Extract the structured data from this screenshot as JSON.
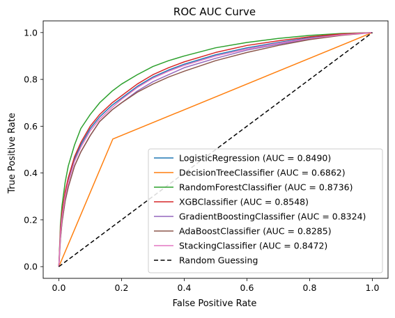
{
  "chart_data": {
    "type": "line",
    "title": "ROC AUC Curve",
    "xlabel": "False Positive Rate",
    "ylabel": "True Positive Rate",
    "xlim": [
      -0.05,
      1.05
    ],
    "ylim": [
      -0.05,
      1.05
    ],
    "xticks": [
      "0.0",
      "0.2",
      "0.4",
      "0.6",
      "0.8",
      "1.0"
    ],
    "yticks": [
      "0.0",
      "0.2",
      "0.4",
      "0.6",
      "0.8",
      "1.0"
    ],
    "grid": false,
    "legend_position": "lower right",
    "series": [
      {
        "name": "LogisticRegression (AUC = 0.8490)",
        "color": "#1f77b4",
        "style": "solid",
        "x": [
          0,
          0.005,
          0.01,
          0.02,
          0.03,
          0.05,
          0.07,
          0.1,
          0.13,
          0.17,
          0.2,
          0.25,
          0.3,
          0.35,
          0.4,
          0.5,
          0.6,
          0.7,
          0.8,
          0.9,
          1.0
        ],
        "y": [
          0,
          0.15,
          0.22,
          0.31,
          0.37,
          0.46,
          0.52,
          0.59,
          0.64,
          0.69,
          0.72,
          0.77,
          0.81,
          0.84,
          0.865,
          0.905,
          0.935,
          0.958,
          0.978,
          0.992,
          1.0
        ]
      },
      {
        "name": "DecisionTreeClassifier (AUC = 0.6862)",
        "color": "#ff7f0e",
        "style": "solid",
        "x": [
          0,
          0.172,
          1.0
        ],
        "y": [
          0,
          0.545,
          1.0
        ]
      },
      {
        "name": "RandomForestClassifier (AUC = 0.8736)",
        "color": "#2ca02c",
        "style": "solid",
        "x": [
          0,
          0.005,
          0.01,
          0.02,
          0.03,
          0.05,
          0.07,
          0.1,
          0.13,
          0.17,
          0.2,
          0.25,
          0.3,
          0.35,
          0.4,
          0.5,
          0.6,
          0.7,
          0.8,
          0.9,
          1.0
        ],
        "y": [
          0,
          0.18,
          0.26,
          0.36,
          0.43,
          0.52,
          0.59,
          0.65,
          0.7,
          0.75,
          0.78,
          0.82,
          0.855,
          0.88,
          0.9,
          0.935,
          0.958,
          0.975,
          0.988,
          0.996,
          1.0
        ]
      },
      {
        "name": "XGBClassifier (AUC = 0.8548)",
        "color": "#d62728",
        "style": "solid",
        "x": [
          0,
          0.005,
          0.01,
          0.02,
          0.03,
          0.05,
          0.07,
          0.1,
          0.13,
          0.17,
          0.2,
          0.25,
          0.3,
          0.35,
          0.4,
          0.5,
          0.6,
          0.7,
          0.8,
          0.9,
          1.0
        ],
        "y": [
          0,
          0.16,
          0.23,
          0.32,
          0.38,
          0.47,
          0.53,
          0.6,
          0.65,
          0.7,
          0.73,
          0.78,
          0.82,
          0.85,
          0.875,
          0.915,
          0.945,
          0.965,
          0.982,
          0.994,
          1.0
        ]
      },
      {
        "name": "GradientBoostingClassifier (AUC = 0.8324)",
        "color": "#9467bd",
        "style": "solid",
        "x": [
          0,
          0.005,
          0.01,
          0.02,
          0.03,
          0.05,
          0.07,
          0.1,
          0.13,
          0.17,
          0.2,
          0.25,
          0.3,
          0.35,
          0.4,
          0.5,
          0.6,
          0.7,
          0.8,
          0.9,
          1.0
        ],
        "y": [
          0,
          0.12,
          0.19,
          0.28,
          0.34,
          0.43,
          0.49,
          0.56,
          0.62,
          0.67,
          0.7,
          0.75,
          0.79,
          0.82,
          0.85,
          0.89,
          0.925,
          0.95,
          0.972,
          0.99,
          1.0
        ]
      },
      {
        "name": "AdaBoostClassifier (AUC = 0.8285)",
        "color": "#8c564b",
        "style": "solid",
        "x": [
          0,
          0.005,
          0.01,
          0.02,
          0.03,
          0.05,
          0.07,
          0.1,
          0.13,
          0.17,
          0.2,
          0.25,
          0.3,
          0.35,
          0.4,
          0.5,
          0.6,
          0.7,
          0.8,
          0.9,
          1.0
        ],
        "y": [
          0,
          0.12,
          0.19,
          0.28,
          0.34,
          0.43,
          0.49,
          0.56,
          0.62,
          0.67,
          0.7,
          0.745,
          0.78,
          0.81,
          0.835,
          0.88,
          0.915,
          0.945,
          0.97,
          0.988,
          1.0
        ]
      },
      {
        "name": "StackingClassifier (AUC = 0.8472)",
        "color": "#e377c2",
        "style": "solid",
        "x": [
          0,
          0.005,
          0.01,
          0.02,
          0.03,
          0.05,
          0.07,
          0.1,
          0.13,
          0.17,
          0.2,
          0.25,
          0.3,
          0.35,
          0.4,
          0.5,
          0.6,
          0.7,
          0.8,
          0.9,
          1.0
        ],
        "y": [
          0,
          0.14,
          0.21,
          0.3,
          0.36,
          0.45,
          0.51,
          0.58,
          0.63,
          0.68,
          0.715,
          0.765,
          0.805,
          0.835,
          0.86,
          0.9,
          0.93,
          0.955,
          0.975,
          0.99,
          1.0
        ]
      },
      {
        "name": "Random Guessing",
        "color": "#000000",
        "style": "dashed",
        "x": [
          0,
          1
        ],
        "y": [
          0,
          1
        ]
      }
    ]
  }
}
